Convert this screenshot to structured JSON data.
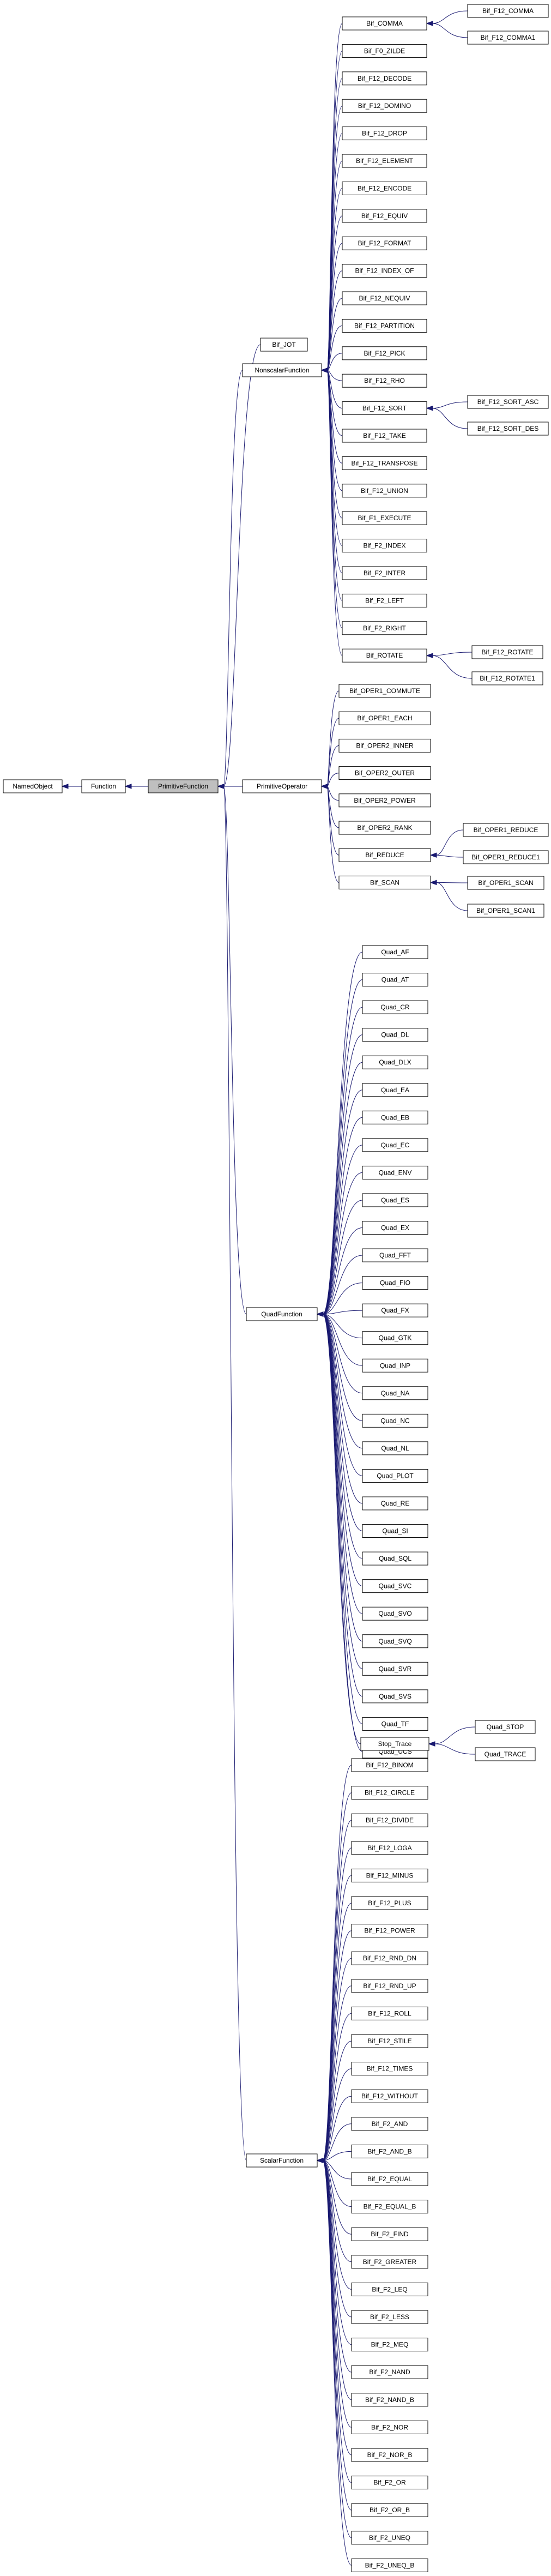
{
  "diagram": {
    "root": "NamedObject",
    "current": "PrimitiveFunction",
    "colors": {
      "edge": "#191970",
      "node_border": "#000000",
      "node_fill": "#ffffff",
      "current_fill": "#bfbfbf"
    },
    "nodes": [
      "NamedObject",
      "Function",
      "PrimitiveFunction",
      "Bif_JOT",
      "NonscalarFunction",
      "PrimitiveOperator",
      "QuadFunction",
      "ScalarFunction",
      "Bif_COMMA",
      "Bif_F12_COMMA",
      "Bif_F12_COMMA1",
      "Bif_F1_EXECUTE",
      "Bif_F12_DECODE",
      "Bif_F12_DOMINO",
      "Bif_F12_DROP",
      "Bif_F12_ELEMENT",
      "Bif_F12_ENCODE",
      "Bif_F12_EQUIV",
      "Bif_F12_FORMAT",
      "Bif_F12_INDEX_OF",
      "Bif_F12_NEQUIV",
      "Bif_F12_PARTITION",
      "Bif_F12_PICK",
      "Bif_F12_RHO",
      "Bif_F12_SORT",
      "Bif_F12_SORT_ASC",
      "Bif_F12_SORT_DES",
      "Bif_F12_TAKE",
      "Bif_F12_TRANSPOSE",
      "Bif_F12_UNION",
      "Bif_F2_INDEX",
      "Bif_F2_INTER",
      "Bif_F2_LEFT",
      "Bif_F2_RIGHT",
      "Bif_F0_ZILDE",
      "Bif_ROTATE",
      "Bif_F12_ROTATE",
      "Bif_F12_ROTATE1",
      "Bif_OPER1_COMMUTE",
      "Bif_OPER1_EACH",
      "Bif_OPER2_INNER",
      "Bif_OPER2_OUTER",
      "Bif_OPER2_POWER",
      "Bif_OPER2_RANK",
      "Bif_REDUCE",
      "Bif_OPER1_REDUCE",
      "Bif_OPER1_REDUCE1",
      "Bif_SCAN",
      "Bif_OPER1_SCAN",
      "Bif_OPER1_SCAN1",
      "Quad_AF",
      "Quad_AT",
      "Quad_CR",
      "Quad_DL",
      "Quad_DLX",
      "Quad_EA",
      "Quad_EB",
      "Quad_EC",
      "Quad_ENV",
      "Quad_ES",
      "Quad_EX",
      "Quad_FFT",
      "Quad_FIO",
      "Quad_FX",
      "Quad_GTK",
      "Quad_INP",
      "Quad_NA",
      "Quad_NC",
      "Quad_NL",
      "Quad_PLOT",
      "Quad_RE",
      "Quad_SI",
      "Quad_SQL",
      "Quad_SVC",
      "Quad_SVO",
      "Quad_SVQ",
      "Quad_SVR",
      "Quad_SVS",
      "Quad_TF",
      "Quad_UCS",
      "Stop_Trace",
      "Quad_STOP",
      "Quad_TRACE",
      "Bif_F12_BINOM",
      "Bif_F12_CIRCLE",
      "Bif_F12_DIVIDE",
      "Bif_F12_LOGA",
      "Bif_F12_MINUS",
      "Bif_F12_PLUS",
      "Bif_F12_POWER",
      "Bif_F12_RND_DN",
      "Bif_F12_RND_UP",
      "Bif_F12_ROLL",
      "Bif_F12_STILE",
      "Bif_F12_TIMES",
      "Bif_F12_WITHOUT",
      "Bif_F2_AND",
      "Bif_F2_AND_B",
      "Bif_F2_EQUAL",
      "Bif_F2_EQUAL_B",
      "Bif_F2_FIND",
      "Bif_F2_GREATER",
      "Bif_F2_LEQ",
      "Bif_F2_LESS",
      "Bif_F2_MEQ",
      "Bif_F2_NAND",
      "Bif_F2_NAND_B",
      "Bif_F2_NOR",
      "Bif_F2_NOR_B",
      "Bif_F2_OR",
      "Bif_F2_OR_B",
      "Bif_F2_UNEQ",
      "Bif_F2_UNEQ_B"
    ],
    "edges": [
      [
        "NamedObject",
        "Function"
      ],
      [
        "Function",
        "PrimitiveFunction"
      ],
      [
        "PrimitiveFunction",
        "Bif_JOT"
      ],
      [
        "PrimitiveFunction",
        "NonscalarFunction"
      ],
      [
        "PrimitiveFunction",
        "PrimitiveOperator"
      ],
      [
        "PrimitiveFunction",
        "QuadFunction"
      ],
      [
        "PrimitiveFunction",
        "ScalarFunction"
      ],
      [
        "NonscalarFunction",
        "Bif_COMMA"
      ],
      [
        "NonscalarFunction",
        "Bif_F0_ZILDE"
      ],
      [
        "NonscalarFunction",
        "Bif_F12_DECODE"
      ],
      [
        "NonscalarFunction",
        "Bif_F12_DOMINO"
      ],
      [
        "NonscalarFunction",
        "Bif_F12_DROP"
      ],
      [
        "NonscalarFunction",
        "Bif_F12_ELEMENT"
      ],
      [
        "NonscalarFunction",
        "Bif_F12_ENCODE"
      ],
      [
        "NonscalarFunction",
        "Bif_F12_EQUIV"
      ],
      [
        "NonscalarFunction",
        "Bif_F12_FORMAT"
      ],
      [
        "NonscalarFunction",
        "Bif_F12_INDEX_OF"
      ],
      [
        "NonscalarFunction",
        "Bif_F12_NEQUIV"
      ],
      [
        "NonscalarFunction",
        "Bif_F12_PARTITION"
      ],
      [
        "NonscalarFunction",
        "Bif_F12_PICK"
      ],
      [
        "NonscalarFunction",
        "Bif_F12_RHO"
      ],
      [
        "NonscalarFunction",
        "Bif_F12_SORT"
      ],
      [
        "NonscalarFunction",
        "Bif_F12_TAKE"
      ],
      [
        "NonscalarFunction",
        "Bif_F12_TRANSPOSE"
      ],
      [
        "NonscalarFunction",
        "Bif_F12_UNION"
      ],
      [
        "NonscalarFunction",
        "Bif_F1_EXECUTE"
      ],
      [
        "NonscalarFunction",
        "Bif_F2_INDEX"
      ],
      [
        "NonscalarFunction",
        "Bif_F2_INTER"
      ],
      [
        "NonscalarFunction",
        "Bif_F2_LEFT"
      ],
      [
        "NonscalarFunction",
        "Bif_F2_RIGHT"
      ],
      [
        "NonscalarFunction",
        "Bif_ROTATE"
      ],
      [
        "Bif_COMMA",
        "Bif_F12_COMMA"
      ],
      [
        "Bif_COMMA",
        "Bif_F12_COMMA1"
      ],
      [
        "Bif_F12_SORT",
        "Bif_F12_SORT_ASC"
      ],
      [
        "Bif_F12_SORT",
        "Bif_F12_SORT_DES"
      ],
      [
        "Bif_ROTATE",
        "Bif_F12_ROTATE"
      ],
      [
        "Bif_ROTATE",
        "Bif_F12_ROTATE1"
      ],
      [
        "PrimitiveOperator",
        "Bif_OPER1_COMMUTE"
      ],
      [
        "PrimitiveOperator",
        "Bif_OPER1_EACH"
      ],
      [
        "PrimitiveOperator",
        "Bif_OPER2_INNER"
      ],
      [
        "PrimitiveOperator",
        "Bif_OPER2_OUTER"
      ],
      [
        "PrimitiveOperator",
        "Bif_OPER2_POWER"
      ],
      [
        "PrimitiveOperator",
        "Bif_OPER2_RANK"
      ],
      [
        "PrimitiveOperator",
        "Bif_REDUCE"
      ],
      [
        "PrimitiveOperator",
        "Bif_SCAN"
      ],
      [
        "Bif_REDUCE",
        "Bif_OPER1_REDUCE"
      ],
      [
        "Bif_REDUCE",
        "Bif_OPER1_REDUCE1"
      ],
      [
        "Bif_SCAN",
        "Bif_OPER1_SCAN"
      ],
      [
        "Bif_SCAN",
        "Bif_OPER1_SCAN1"
      ],
      [
        "QuadFunction",
        "Quad_AF"
      ],
      [
        "QuadFunction",
        "Quad_AT"
      ],
      [
        "QuadFunction",
        "Quad_CR"
      ],
      [
        "QuadFunction",
        "Quad_DL"
      ],
      [
        "QuadFunction",
        "Quad_DLX"
      ],
      [
        "QuadFunction",
        "Quad_EA"
      ],
      [
        "QuadFunction",
        "Quad_EB"
      ],
      [
        "QuadFunction",
        "Quad_EC"
      ],
      [
        "QuadFunction",
        "Quad_ENV"
      ],
      [
        "QuadFunction",
        "Quad_ES"
      ],
      [
        "QuadFunction",
        "Quad_EX"
      ],
      [
        "QuadFunction",
        "Quad_FFT"
      ],
      [
        "QuadFunction",
        "Quad_FIO"
      ],
      [
        "QuadFunction",
        "Quad_FX"
      ],
      [
        "QuadFunction",
        "Quad_GTK"
      ],
      [
        "QuadFunction",
        "Quad_INP"
      ],
      [
        "QuadFunction",
        "Quad_NA"
      ],
      [
        "QuadFunction",
        "Quad_NC"
      ],
      [
        "QuadFunction",
        "Quad_NL"
      ],
      [
        "QuadFunction",
        "Quad_PLOT"
      ],
      [
        "QuadFunction",
        "Quad_RE"
      ],
      [
        "QuadFunction",
        "Quad_SI"
      ],
      [
        "QuadFunction",
        "Quad_SQL"
      ],
      [
        "QuadFunction",
        "Quad_SVC"
      ],
      [
        "QuadFunction",
        "Quad_SVO"
      ],
      [
        "QuadFunction",
        "Quad_SVQ"
      ],
      [
        "QuadFunction",
        "Quad_SVR"
      ],
      [
        "QuadFunction",
        "Quad_SVS"
      ],
      [
        "QuadFunction",
        "Quad_TF"
      ],
      [
        "QuadFunction",
        "Quad_UCS"
      ],
      [
        "QuadFunction",
        "Stop_Trace"
      ],
      [
        "Stop_Trace",
        "Quad_STOP"
      ],
      [
        "Stop_Trace",
        "Quad_TRACE"
      ],
      [
        "ScalarFunction",
        "Bif_F12_BINOM"
      ],
      [
        "ScalarFunction",
        "Bif_F12_CIRCLE"
      ],
      [
        "ScalarFunction",
        "Bif_F12_DIVIDE"
      ],
      [
        "ScalarFunction",
        "Bif_F12_LOGA"
      ],
      [
        "ScalarFunction",
        "Bif_F12_MINUS"
      ],
      [
        "ScalarFunction",
        "Bif_F12_PLUS"
      ],
      [
        "ScalarFunction",
        "Bif_F12_POWER"
      ],
      [
        "ScalarFunction",
        "Bif_F12_RND_DN"
      ],
      [
        "ScalarFunction",
        "Bif_F12_RND_UP"
      ],
      [
        "ScalarFunction",
        "Bif_F12_ROLL"
      ],
      [
        "ScalarFunction",
        "Bif_F12_STILE"
      ],
      [
        "ScalarFunction",
        "Bif_F12_TIMES"
      ],
      [
        "ScalarFunction",
        "Bif_F12_WITHOUT"
      ],
      [
        "ScalarFunction",
        "Bif_F2_AND"
      ],
      [
        "ScalarFunction",
        "Bif_F2_AND_B"
      ],
      [
        "ScalarFunction",
        "Bif_F2_EQUAL"
      ],
      [
        "ScalarFunction",
        "Bif_F2_EQUAL_B"
      ],
      [
        "ScalarFunction",
        "Bif_F2_FIND"
      ],
      [
        "ScalarFunction",
        "Bif_F2_GREATER"
      ],
      [
        "ScalarFunction",
        "Bif_F2_LEQ"
      ],
      [
        "ScalarFunction",
        "Bif_F2_LESS"
      ],
      [
        "ScalarFunction",
        "Bif_F2_MEQ"
      ],
      [
        "ScalarFunction",
        "Bif_F2_NAND"
      ],
      [
        "ScalarFunction",
        "Bif_F2_NAND_B"
      ],
      [
        "ScalarFunction",
        "Bif_F2_NOR"
      ],
      [
        "ScalarFunction",
        "Bif_F2_NOR_B"
      ],
      [
        "ScalarFunction",
        "Bif_F2_OR"
      ],
      [
        "ScalarFunction",
        "Bif_F2_OR_B"
      ],
      [
        "ScalarFunction",
        "Bif_F2_UNEQ"
      ],
      [
        "ScalarFunction",
        "Bif_F2_UNEQ_B"
      ]
    ]
  }
}
